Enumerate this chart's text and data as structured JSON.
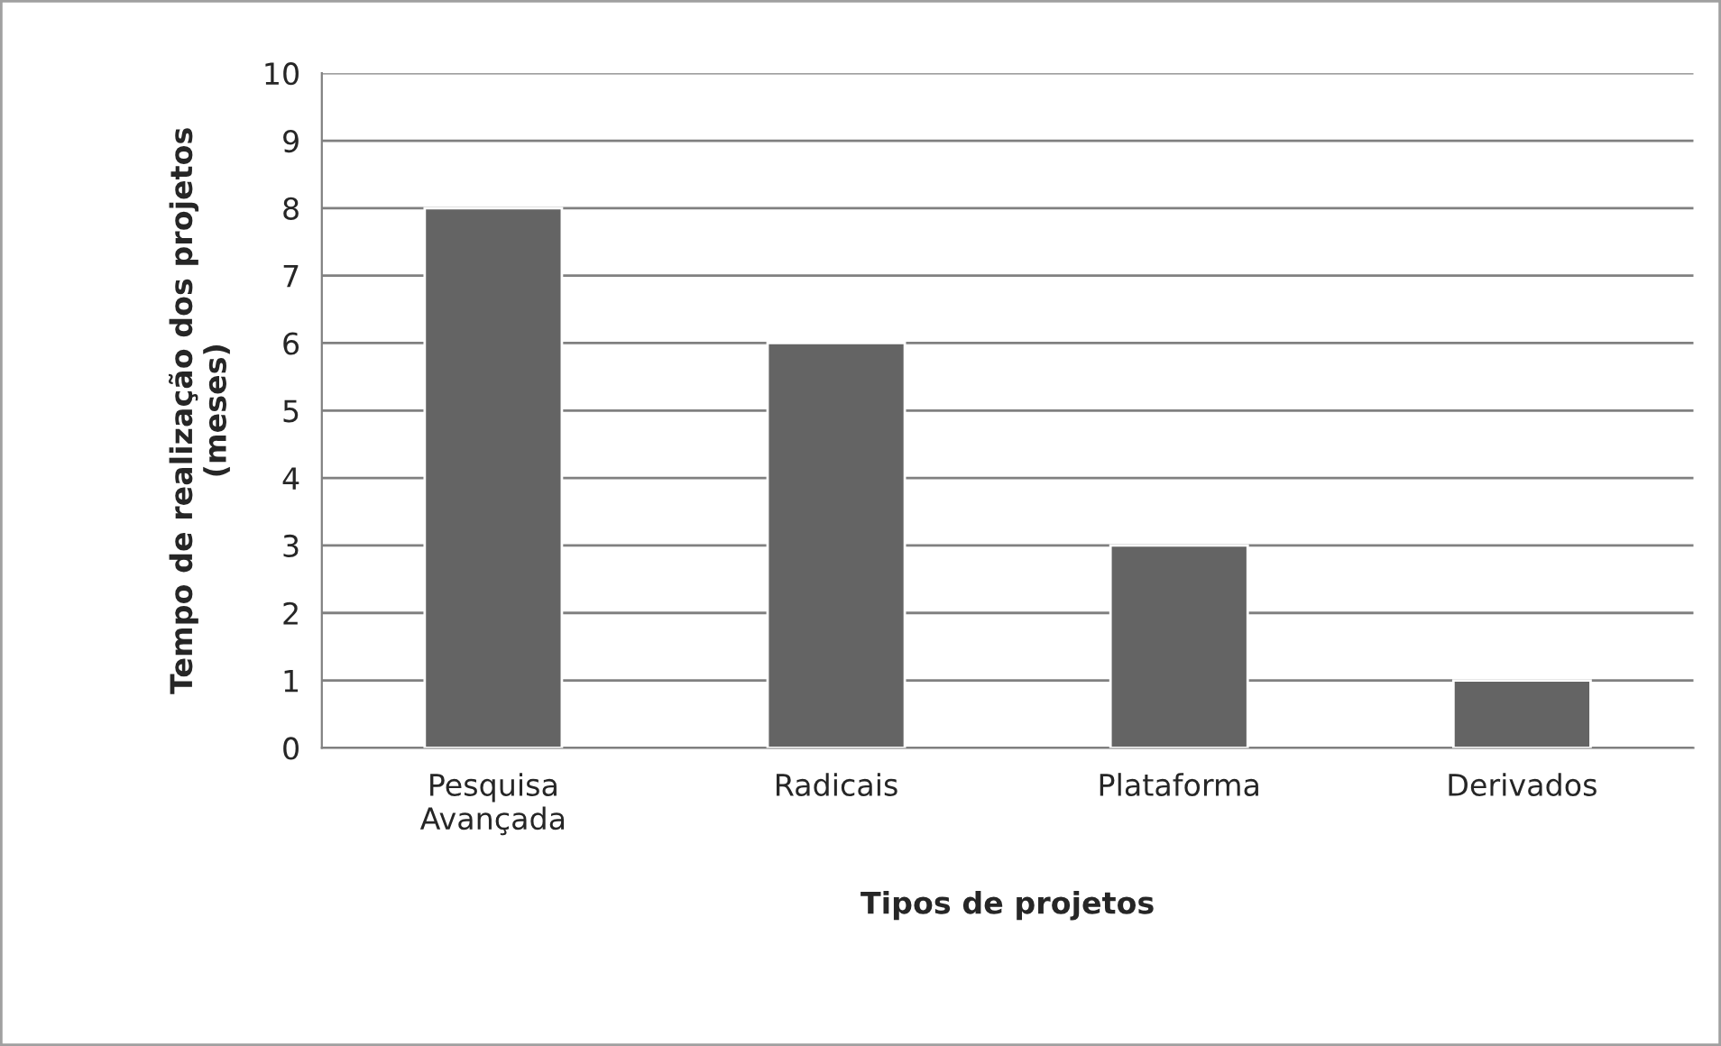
{
  "chart_data": {
    "type": "bar",
    "categories": [
      "Pesquisa\nAvançada",
      "Radicais",
      "Plataforma",
      "Derivados"
    ],
    "values": [
      8,
      6,
      3,
      1
    ],
    "color": "#646464",
    "xlabel": "Tipos de projetos",
    "ylabel": "Tempo de realização dos projetos\n(meses)",
    "ylim": [
      0,
      10
    ],
    "yticks": [
      0,
      1,
      2,
      3,
      4,
      5,
      6,
      7,
      8,
      9,
      10
    ],
    "grid": "y",
    "legend": false
  }
}
